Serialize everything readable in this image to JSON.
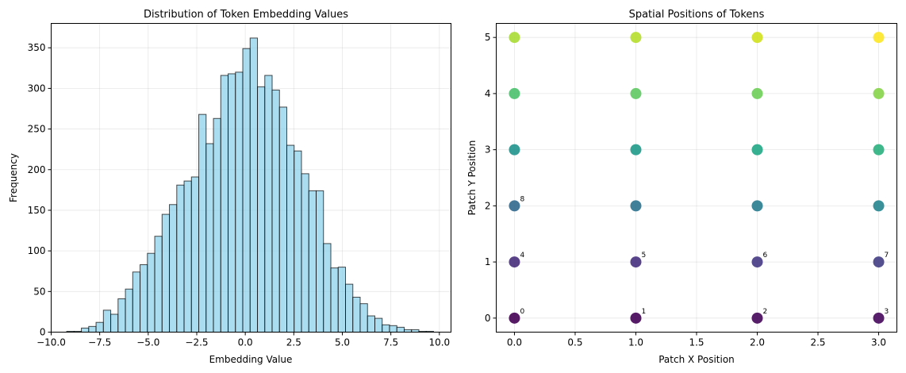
{
  "chart_data": [
    {
      "type": "bar",
      "title": "Distribution of Token Embedding Values",
      "xlabel": "Embedding Value",
      "ylabel": "Frequency",
      "xlim": [
        -10.0,
        10.6
      ],
      "ylim": [
        0,
        380
      ],
      "xticks": [
        -10.0,
        -7.5,
        -5.0,
        -2.5,
        0.0,
        2.5,
        5.0,
        7.5,
        10.0
      ],
      "xtick_labels": [
        "−10.0",
        "−7.5",
        "−5.0",
        "−2.5",
        "0.0",
        "2.5",
        "5.0",
        "7.5",
        "10.0"
      ],
      "yticks": [
        0,
        50,
        100,
        150,
        200,
        250,
        300,
        350
      ],
      "ytick_labels": [
        "0",
        "50",
        "100",
        "150",
        "200",
        "250",
        "300",
        "350"
      ],
      "grid": true,
      "bin_start": -9.2,
      "bin_width": 0.378,
      "values": [
        1,
        1,
        5,
        7,
        12,
        27,
        22,
        41,
        53,
        74,
        83,
        97,
        118,
        145,
        157,
        181,
        186,
        191,
        268,
        232,
        263,
        316,
        318,
        320,
        349,
        362,
        302,
        316,
        298,
        277,
        230,
        223,
        195,
        174,
        174,
        109,
        79,
        80,
        59,
        43,
        35,
        20,
        17,
        9,
        8,
        6,
        3,
        3,
        1,
        1
      ],
      "bar_color": "#87CEEB",
      "edge_color": "#000000"
    },
    {
      "type": "scatter",
      "title": "Spatial Positions of Tokens",
      "xlabel": "Patch X Position",
      "ylabel": "Patch Y Position",
      "xlim": [
        -0.15,
        3.15
      ],
      "ylim": [
        -0.25,
        5.25
      ],
      "xticks": [
        0.0,
        0.5,
        1.0,
        1.5,
        2.0,
        2.5,
        3.0
      ],
      "xtick_labels": [
        "0.0",
        "0.5",
        "1.0",
        "1.5",
        "2.0",
        "2.5",
        "3.0"
      ],
      "yticks": [
        0,
        1,
        2,
        3,
        4,
        5
      ],
      "ytick_labels": [
        "0",
        "1",
        "2",
        "3",
        "4",
        "5"
      ],
      "grid": true,
      "colormap": "viridis",
      "points": [
        {
          "x": 0,
          "y": 0,
          "color": "#440154",
          "label": "0"
        },
        {
          "x": 1,
          "y": 0,
          "color": "#440256",
          "label": "1"
        },
        {
          "x": 2,
          "y": 0,
          "color": "#450559",
          "label": "2"
        },
        {
          "x": 3,
          "y": 0,
          "color": "#46085c",
          "label": "3"
        },
        {
          "x": 0,
          "y": 1,
          "color": "#472d7b",
          "label": "4"
        },
        {
          "x": 1,
          "y": 1,
          "color": "#46307e",
          "label": "5"
        },
        {
          "x": 2,
          "y": 1,
          "color": "#443983",
          "label": "6"
        },
        {
          "x": 3,
          "y": 1,
          "color": "#433e85",
          "label": "7"
        },
        {
          "x": 0,
          "y": 2,
          "color": "#31688e",
          "label": "8"
        },
        {
          "x": 1,
          "y": 2,
          "color": "#2c728e",
          "label": ""
        },
        {
          "x": 2,
          "y": 2,
          "color": "#287c8e",
          "label": ""
        },
        {
          "x": 3,
          "y": 2,
          "color": "#25858e",
          "label": ""
        },
        {
          "x": 0,
          "y": 3,
          "color": "#20928c",
          "label": ""
        },
        {
          "x": 1,
          "y": 3,
          "color": "#1f9a8a",
          "label": ""
        },
        {
          "x": 2,
          "y": 3,
          "color": "#21a685",
          "label": ""
        },
        {
          "x": 3,
          "y": 3,
          "color": "#2ab07f",
          "label": ""
        },
        {
          "x": 0,
          "y": 4,
          "color": "#4ac16d",
          "label": ""
        },
        {
          "x": 1,
          "y": 4,
          "color": "#5ec962",
          "label": ""
        },
        {
          "x": 2,
          "y": 4,
          "color": "#6ece58",
          "label": ""
        },
        {
          "x": 3,
          "y": 4,
          "color": "#86d549",
          "label": ""
        },
        {
          "x": 0,
          "y": 5,
          "color": "#a8db34",
          "label": ""
        },
        {
          "x": 1,
          "y": 5,
          "color": "#b5de2b",
          "label": ""
        },
        {
          "x": 2,
          "y": 5,
          "color": "#d0e11c",
          "label": ""
        },
        {
          "x": 3,
          "y": 5,
          "color": "#fde725",
          "label": ""
        }
      ]
    }
  ]
}
